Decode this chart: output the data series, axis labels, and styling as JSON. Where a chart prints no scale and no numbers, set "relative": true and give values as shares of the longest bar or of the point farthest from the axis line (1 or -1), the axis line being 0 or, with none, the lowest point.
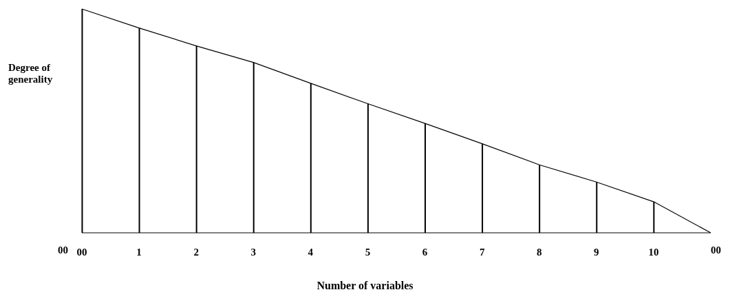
{
  "chart_data": {
    "type": "bar",
    "relative": true,
    "xlabel": "Number of variables",
    "ylabel": "Degree of generality",
    "categories": [
      "00",
      "1",
      "2",
      "3",
      "4",
      "5",
      "6",
      "7",
      "8",
      "9",
      "10",
      null
    ],
    "series": [
      {
        "color": "#000000",
        "values": [
          1,
          0.915,
          0.835,
          0.761,
          0.668,
          0.577,
          0.489,
          0.398,
          0.304,
          0.227,
          0.139,
          null
        ]
      },
      {
        "type": "line",
        "color": "#000000",
        "values": [
          1,
          0.915,
          0.835,
          0.761,
          0.668,
          0.577,
          0.489,
          0.398,
          0.304,
          0.227,
          0.139,
          0
        ]
      }
    ],
    "annotations": [
      "00",
      "00"
    ]
  }
}
